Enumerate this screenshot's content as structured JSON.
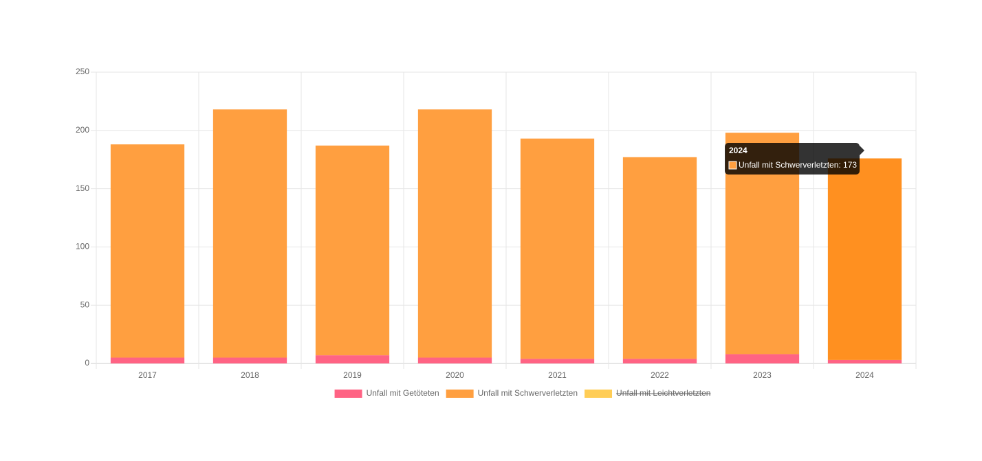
{
  "chart_data": {
    "type": "stacked-bar",
    "categories": [
      "2017",
      "2018",
      "2019",
      "2020",
      "2021",
      "2022",
      "2023",
      "2024"
    ],
    "series": [
      {
        "name": "Unfall mit Getöteten",
        "color": "#ff6384",
        "values": [
          5,
          5,
          7,
          5,
          4,
          4,
          8,
          3
        ]
      },
      {
        "name": "Unfall mit Schwerverletzten",
        "color": "#ff9f40",
        "values": [
          183,
          213,
          180,
          213,
          189,
          173,
          190,
          173
        ]
      },
      {
        "name": "Unfall mit Leichtverletzten",
        "color": "#ffcd56",
        "values": [
          null,
          null,
          null,
          null,
          null,
          null,
          null,
          null
        ],
        "hidden": true
      }
    ],
    "ylim": [
      0,
      250
    ],
    "yticks": [
      0,
      50,
      100,
      150,
      200,
      250
    ],
    "grid": true,
    "legend": "bottom",
    "tooltip": {
      "title": "2024",
      "text": "Unfall mit Schwerverletzten: 173",
      "series": 1,
      "index": 7,
      "hover_color": "#ff9020"
    }
  }
}
